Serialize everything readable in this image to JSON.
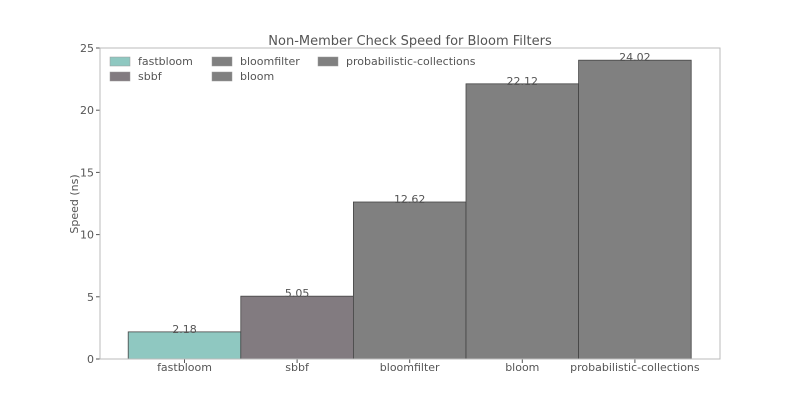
{
  "chart_data": {
    "type": "bar",
    "title": "Non-Member Check Speed for Bloom Filters",
    "xlabel": "",
    "ylabel": "Speed (ns)",
    "ylim": [
      0,
      25
    ],
    "yticks": [
      0,
      5,
      10,
      15,
      20,
      25
    ],
    "grid": false,
    "legend_position": "top-left",
    "categories": [
      "fastbloom",
      "sbbf",
      "bloomfilter",
      "bloom",
      "probabilistic-collections"
    ],
    "values": [
      2.18,
      5.05,
      12.62,
      22.12,
      24.02
    ],
    "data_labels": [
      "2.18",
      "5.05",
      "12.62",
      "22.12",
      "24.02"
    ],
    "series": [
      {
        "name": "fastbloom",
        "color": "#8fc8c1"
      },
      {
        "name": "sbbf",
        "color": "#827b80"
      },
      {
        "name": "bloomfilter",
        "color": "#808080"
      },
      {
        "name": "bloom",
        "color": "#808080"
      },
      {
        "name": "probabilistic-collections",
        "color": "#808080"
      }
    ]
  }
}
